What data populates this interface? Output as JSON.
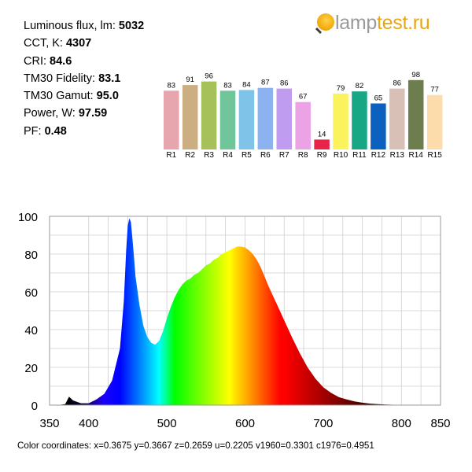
{
  "stats": [
    {
      "label": "Luminous flux, lm:",
      "value": "5032"
    },
    {
      "label": "CCT, K:",
      "value": "4307"
    },
    {
      "label": "CRI:",
      "value": "84.6"
    },
    {
      "label": "TM30 Fidelity:",
      "value": "83.1"
    },
    {
      "label": "TM30 Gamut:",
      "value": "95.0"
    },
    {
      "label": "Power, W:",
      "value": "97.59"
    },
    {
      "label": "PF:",
      "value": "0.48"
    }
  ],
  "logo": {
    "part1": "lamp",
    "part2": "test.ru",
    "icon": "bulb-icon"
  },
  "chart_data": [
    {
      "type": "bar",
      "categories": [
        "R1",
        "R2",
        "R3",
        "R4",
        "R5",
        "R6",
        "R7",
        "R8",
        "R9",
        "R10",
        "R11",
        "R12",
        "R13",
        "R14",
        "R15"
      ],
      "values": [
        83,
        91,
        96,
        83,
        84,
        87,
        86,
        67,
        14,
        79,
        82,
        65,
        86,
        98,
        77
      ],
      "colors": [
        "#e7a6ad",
        "#cbae82",
        "#a7c15a",
        "#70c69a",
        "#7fc4e8",
        "#8cb3ef",
        "#c09cf0",
        "#eba3e6",
        "#e8244b",
        "#fbf35e",
        "#17a784",
        "#0c61bf",
        "#d8c0b6",
        "#6e7d4e",
        "#fddcab"
      ],
      "ylim": [
        0,
        100
      ]
    },
    {
      "type": "area",
      "x": [
        350,
        360,
        370,
        375,
        380,
        390,
        400,
        410,
        420,
        430,
        440,
        445,
        448,
        450,
        452,
        454,
        456,
        458,
        460,
        465,
        470,
        475,
        480,
        485,
        490,
        495,
        500,
        505,
        510,
        515,
        520,
        525,
        530,
        535,
        540,
        545,
        550,
        555,
        560,
        565,
        570,
        575,
        580,
        585,
        590,
        595,
        600,
        605,
        610,
        615,
        620,
        625,
        630,
        640,
        650,
        660,
        670,
        680,
        690,
        700,
        710,
        720,
        730,
        740,
        750,
        760,
        770,
        780,
        790,
        800,
        820,
        850
      ],
      "y": [
        0,
        0,
        0.5,
        4.5,
        2.5,
        1,
        1,
        3,
        6,
        13,
        30,
        55,
        82,
        95,
        99,
        97,
        88,
        78,
        68,
        53,
        42,
        36,
        33,
        32,
        34,
        39,
        46,
        52,
        57,
        61,
        64,
        66,
        67,
        69,
        70,
        72,
        74,
        75,
        77,
        78,
        80,
        81,
        82,
        83,
        84,
        84,
        83.5,
        82,
        80,
        77,
        73,
        68,
        63,
        54,
        45,
        36,
        27.5,
        20,
        14,
        9.5,
        6.5,
        4.2,
        3,
        2,
        1.3,
        0.8,
        0.5,
        0.3,
        0.2,
        0.1,
        0,
        0
      ],
      "xlim": [
        350,
        850
      ],
      "ylim": [
        0,
        100
      ],
      "xticks": [
        350,
        400,
        500,
        600,
        700,
        800,
        850
      ],
      "yticks": [
        0,
        20,
        40,
        60,
        80,
        100
      ],
      "grid": true
    }
  ],
  "footer": "Color coordinates: x=0.3675 y=0.3667 z=0.2659 u=0.2205 v1960=0.3301 c1976=0.4951"
}
